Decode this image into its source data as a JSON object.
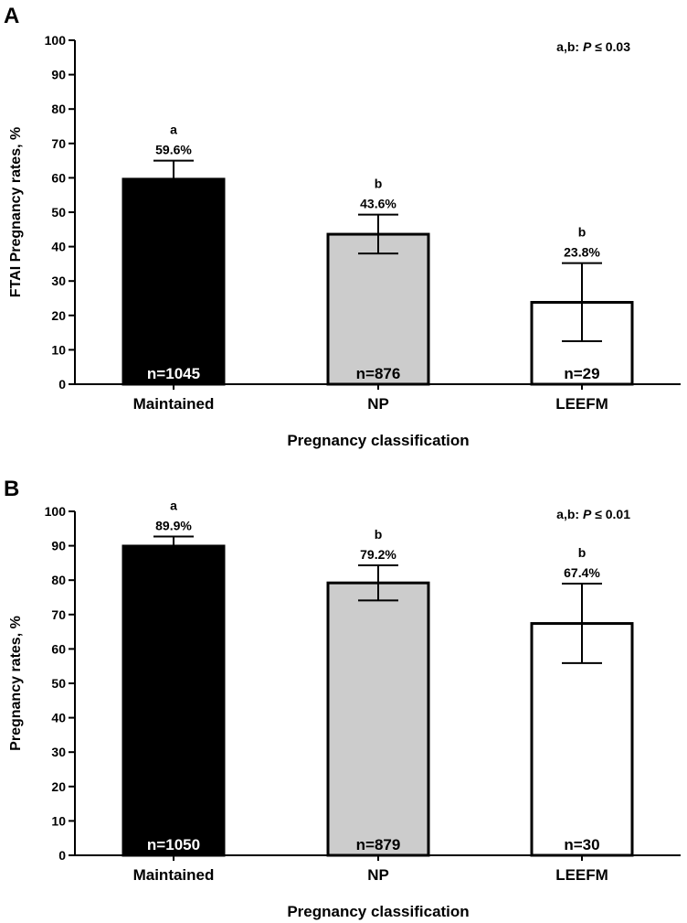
{
  "colors": {
    "maintained": "#000000",
    "np": "#cccccc",
    "leefm": "#ffffff",
    "n_on_dark": "#ffffff",
    "n_on_light": "#000000"
  },
  "chart_data": [
    {
      "type": "bar",
      "panel_label": "A",
      "categories": [
        "Maintained",
        "NP",
        "LEEFM"
      ],
      "values": [
        59.6,
        43.6,
        23.8
      ],
      "value_labels": [
        "59.6%",
        "43.6%",
        "23.8%"
      ],
      "error_low": [
        54.2,
        38.0,
        12.5
      ],
      "error_high": [
        65.0,
        49.3,
        35.2
      ],
      "sig_letters": [
        "a",
        "b",
        "b"
      ],
      "n_labels": [
        "n=1045",
        "n=876",
        "n=29"
      ],
      "ylabel": "FTAI Pregnancy rates, %",
      "xlabel": "Pregnancy classification",
      "ylim": [
        0,
        100
      ],
      "yticks": [
        0,
        10,
        20,
        30,
        40,
        50,
        60,
        70,
        80,
        90,
        100
      ],
      "ytick_labels": [
        "0",
        "10",
        "20",
        "30",
        "40",
        "50",
        "60",
        "70",
        "80",
        "90",
        "100"
      ],
      "p_note_prefix": "a,b: ",
      "p_note_p": "P",
      "p_note_suffix": " ≤ 0.03"
    },
    {
      "type": "bar",
      "panel_label": "B",
      "categories": [
        "Maintained",
        "NP",
        "LEEFM"
      ],
      "values": [
        89.9,
        79.2,
        67.4
      ],
      "value_labels": [
        "89.9%",
        "79.2%",
        "67.4%"
      ],
      "error_low": [
        87.1,
        74.1,
        55.9
      ],
      "error_high": [
        92.7,
        84.3,
        79.0
      ],
      "sig_letters": [
        "a",
        "b",
        "b"
      ],
      "n_labels": [
        "n=1050",
        "n=879",
        "n=30"
      ],
      "ylabel": "Pregnancy rates, %",
      "xlabel": "Pregnancy classification",
      "ylim": [
        0,
        100
      ],
      "yticks": [
        0,
        10,
        20,
        30,
        40,
        50,
        60,
        70,
        80,
        90,
        100
      ],
      "ytick_labels": [
        "0",
        "10",
        "20",
        "30",
        "40",
        "50",
        "60",
        "70",
        "80",
        "90",
        "100"
      ],
      "p_note_prefix": "a,b: ",
      "p_note_p": "P",
      "p_note_suffix": " ≤ 0.01"
    }
  ]
}
